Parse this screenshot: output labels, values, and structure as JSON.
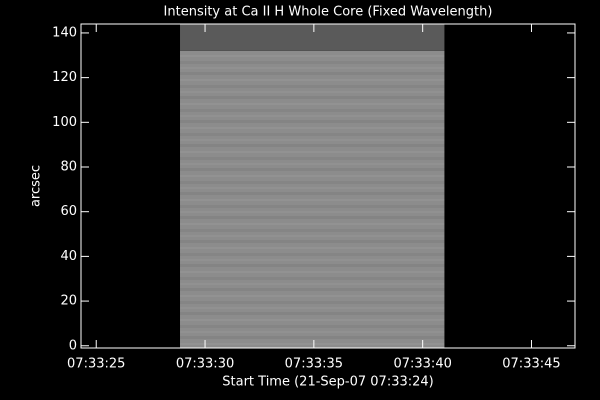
{
  "chart_data": {
    "type": "image",
    "title": "Intensity at Ca II H Whole Core (Fixed Wavelength)",
    "x_label": "Start Time (21-Sep-07 07:33:24)",
    "y_label": "arcsec",
    "xlim": [
      0.3,
      23
    ],
    "ylim": [
      -1,
      144
    ],
    "xticks": [
      {
        "value": 1,
        "label": "07:33:25"
      },
      {
        "value": 6,
        "label": "07:33:30"
      },
      {
        "value": 11,
        "label": "07:33:35"
      },
      {
        "value": 16,
        "label": "07:33:40"
      },
      {
        "value": 21,
        "label": "07:33:45"
      }
    ],
    "yticks": [
      0,
      20,
      40,
      60,
      80,
      100,
      120,
      140
    ],
    "image": {
      "x": [
        4.85,
        17
      ],
      "y": [
        -1,
        132
      ],
      "color": "#8c8c8c"
    },
    "band": {
      "x": [
        4.85,
        17
      ],
      "y": [
        132,
        144
      ],
      "color": "#5a5a5a"
    }
  }
}
